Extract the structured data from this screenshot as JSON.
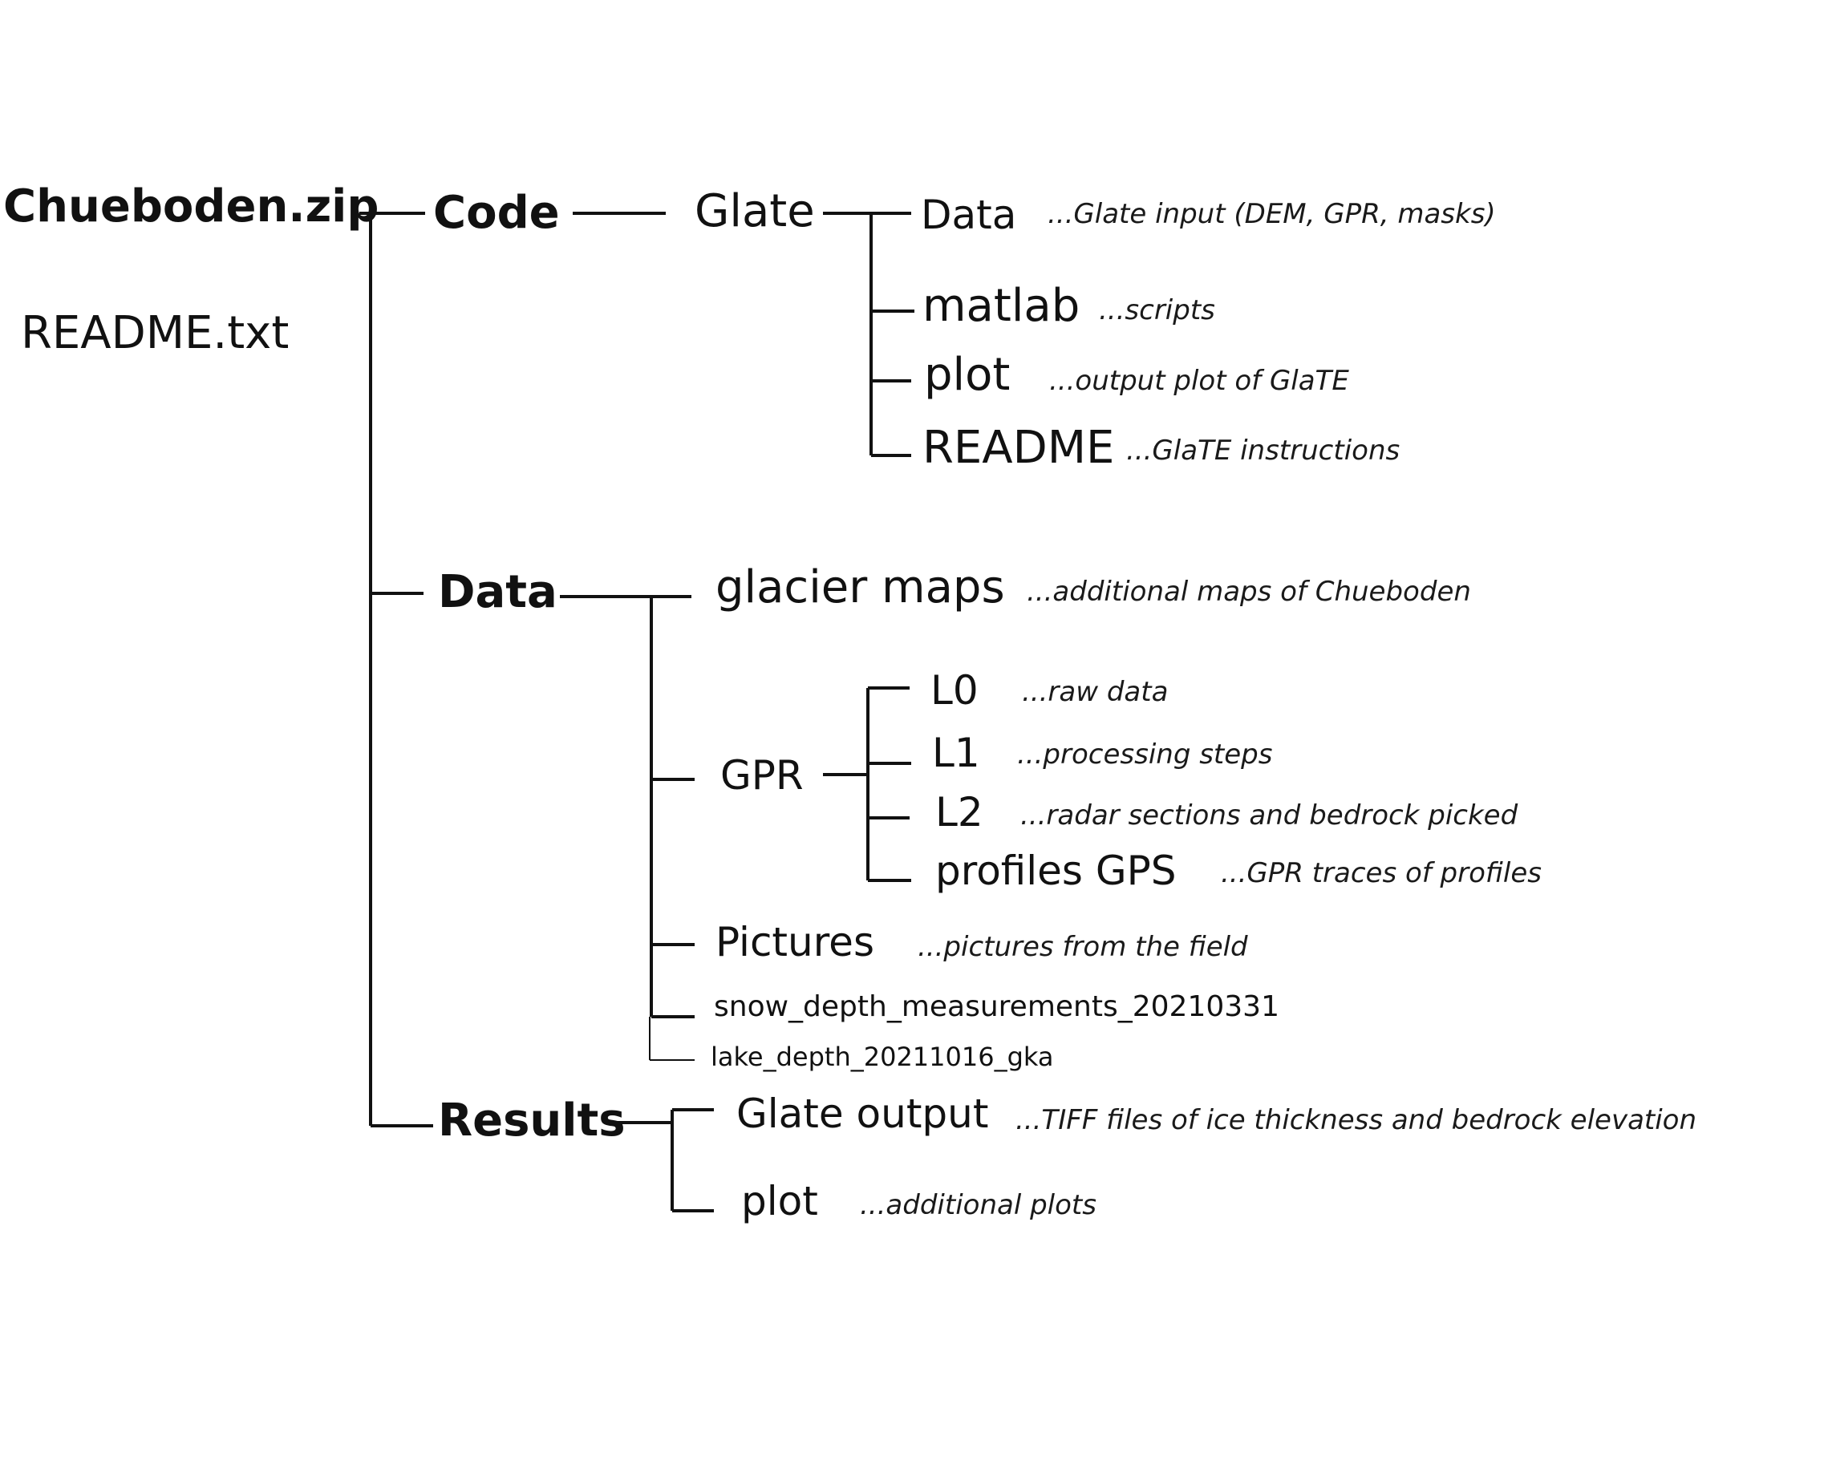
{
  "root": {
    "name": "Chueboden.zip",
    "readme": "README.txt"
  },
  "code": {
    "name": "Code",
    "glate": {
      "name": "Glate",
      "children": [
        {
          "name": "Data",
          "desc": "...Glate input (DEM, GPR, masks)"
        },
        {
          "name": "matlab",
          "desc": "...scripts"
        },
        {
          "name": "plot",
          "desc": "...output plot of GlaTE"
        },
        {
          "name": "README",
          "desc": "...GlaTE instructions"
        }
      ]
    }
  },
  "data": {
    "name": "Data",
    "glacier_maps": {
      "name": "glacier maps",
      "desc": "...additional maps of Chueboden"
    },
    "gpr": {
      "name": "GPR",
      "children": [
        {
          "name": "L0",
          "desc": "...raw data"
        },
        {
          "name": "L1",
          "desc": "...processing steps"
        },
        {
          "name": "L2",
          "desc": "...radar sections and bedrock picked"
        },
        {
          "name": "profiles GPS",
          "desc": "...GPR traces of profiles"
        }
      ]
    },
    "pictures": {
      "name": "Pictures",
      "desc": "...pictures from the field"
    },
    "snow_depth": {
      "name": "snow_depth_measurements_20210331"
    },
    "lake_depth": {
      "name": "lake_depth_20211016_gka"
    }
  },
  "results": {
    "name": "Results",
    "children": [
      {
        "name": "Glate output",
        "desc": "...TIFF files of ice thickness and bedrock elevation"
      },
      {
        "name": "plot",
        "desc": "...additional plots"
      }
    ]
  }
}
